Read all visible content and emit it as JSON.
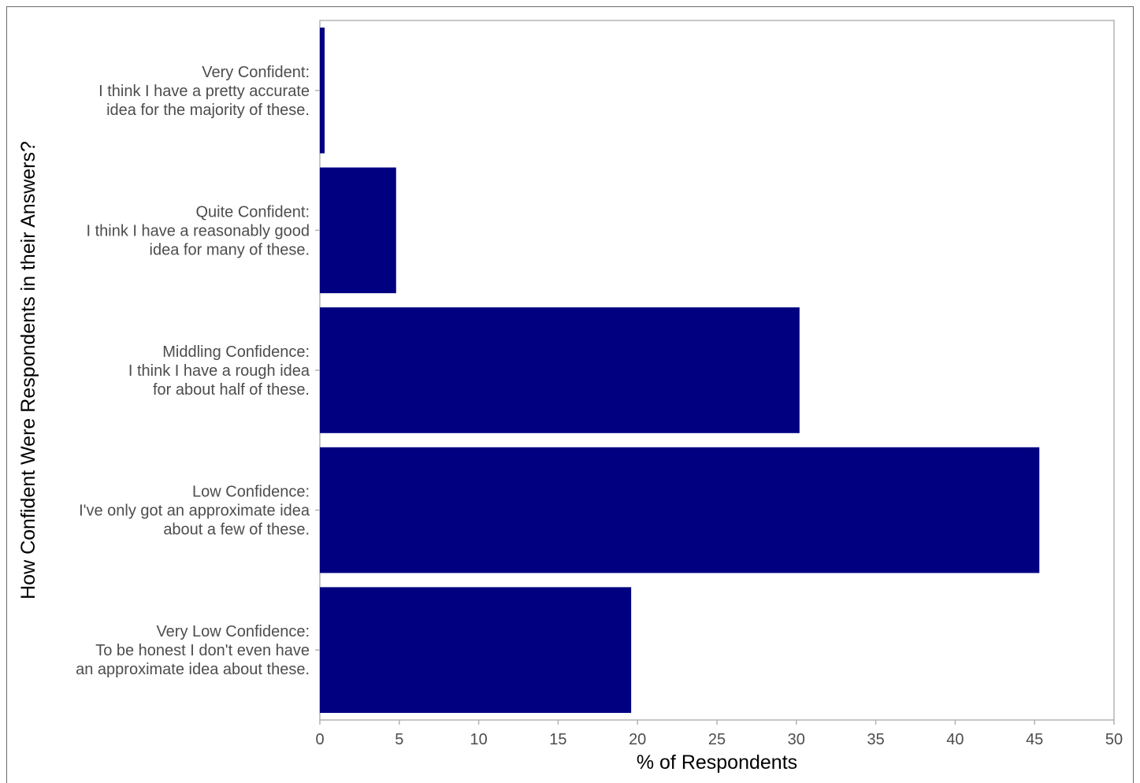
{
  "chart_data": {
    "type": "bar",
    "orientation": "horizontal",
    "categories": [
      [
        "Very Confident:",
        "I think I have a pretty accurate",
        "idea for the majority of these."
      ],
      [
        "Quite Confident:",
        "I think I have a reasonably good",
        "idea for many of these."
      ],
      [
        "Middling Confidence:",
        "I think I have a rough idea",
        "for about half of these."
      ],
      [
        "Low Confidence:",
        "I've only got an approximate idea",
        "about a few of these."
      ],
      [
        "Very Low Confidence:",
        "To be honest I don't even have",
        "an approximate idea about these."
      ]
    ],
    "values": [
      0.3,
      4.8,
      30.2,
      45.3,
      19.6
    ],
    "xlabel": "% of Respondents",
    "ylabel": "How Confident Were Respondents in their Answers?",
    "xlim": [
      0,
      50
    ],
    "xticks": [
      0,
      5,
      10,
      15,
      20,
      25,
      30,
      35,
      40,
      45,
      50
    ],
    "grid": false,
    "bar_color": "#000080",
    "axis_color": "#b3b3b3"
  }
}
